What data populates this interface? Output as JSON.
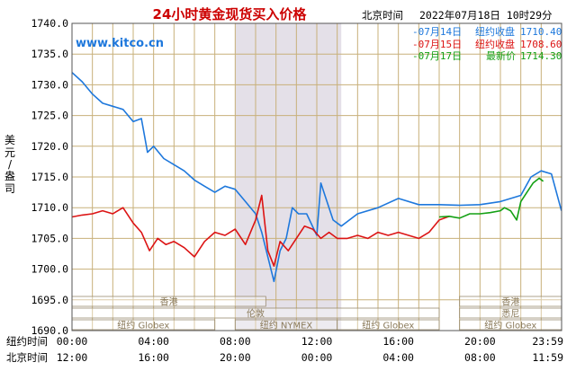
{
  "header": {
    "title": "24小时黄金现货买入价格",
    "tz_label": "北京时间",
    "datetime": "2022年07月18日 10时29分",
    "watermark": "www.kitco.cn"
  },
  "legend": [
    {
      "date": "-07月14日",
      "label": "纽约收盘",
      "value": "1710.40",
      "color": "#1e78dc"
    },
    {
      "date": "-07月15日",
      "label": "纽约收盘",
      "value": "1708.60",
      "color": "#dc1414"
    },
    {
      "date": "-07月17日",
      "label": "最新价",
      "value": "1714.30",
      "color": "#14a014"
    }
  ],
  "y_axis_label": [
    "美",
    "元",
    "/",
    "盎",
    "司"
  ],
  "sessions": [
    {
      "label": "香港",
      "x_start": 0.0,
      "x_end": 9.5,
      "row": 0
    },
    {
      "label": "伦敦",
      "x_start": 0.0,
      "x_end": 18.0,
      "row": 1
    },
    {
      "label": "纽约 Globex",
      "x_start": 0.0,
      "x_end": 7.0,
      "row": 2
    },
    {
      "label": "纽约 NYMEX",
      "x_start": 8.0,
      "x_end": 13.0,
      "row": 2
    },
    {
      "label": "纽约 Globex",
      "x_start": 13.0,
      "x_end": 18.0,
      "row": 2
    },
    {
      "label": "香港",
      "x_start": 19.0,
      "x_end": 24.0,
      "row": 0
    },
    {
      "label": "悉尼",
      "x_start": 19.0,
      "x_end": 24.0,
      "row": 1
    },
    {
      "label": "纽约 Globex",
      "x_start": 19.0,
      "x_end": 24.0,
      "row": 2
    }
  ],
  "bottom_axis": {
    "row1_label": "纽约时间",
    "row2_label": "北京时间",
    "ny_ticks": [
      "00:00",
      "04:00",
      "08:00",
      "12:00",
      "16:00",
      "20:00",
      "23:59"
    ],
    "bj_ticks": [
      "12:00",
      "16:00",
      "20:00",
      "00:00",
      "04:00",
      "08:00",
      "11:59"
    ]
  },
  "chart_data": {
    "type": "line",
    "title": "24小时黄金现货买入价格",
    "xlabel": "纽约时间",
    "ylabel": "美元/盎司",
    "xlim": [
      0,
      24
    ],
    "ylim": [
      1690,
      1740
    ],
    "y_ticks": [
      "1740.0",
      "1735.0",
      "1730.0",
      "1725.0",
      "1720.0",
      "1715.0",
      "1710.0",
      "1705.0",
      "1700.0",
      "1695.0",
      "1690.0"
    ],
    "grid": true,
    "nymex_shade": [
      8.0,
      13.2
    ],
    "series": [
      {
        "name": "07月14日",
        "color": "#1e78dc",
        "x": [
          0,
          0.5,
          1.0,
          1.5,
          2.0,
          2.5,
          3.0,
          3.4,
          3.7,
          4.0,
          4.5,
          5.0,
          5.5,
          6.0,
          6.5,
          7.0,
          7.5,
          8.0,
          8.5,
          9.0,
          9.3,
          9.6,
          9.9,
          10.2,
          10.5,
          10.8,
          11.1,
          11.5,
          12.0,
          12.2,
          12.5,
          12.8,
          13.2,
          14.0,
          15.0,
          16.0,
          17.0,
          18.0,
          19.0,
          20.0,
          21.0,
          22.0,
          22.5,
          23.0,
          23.5,
          23.99
        ],
        "values": [
          1732.0,
          1730.5,
          1728.5,
          1727.0,
          1726.5,
          1726.0,
          1724.0,
          1724.5,
          1719.0,
          1720.0,
          1718.0,
          1717.0,
          1716.0,
          1714.5,
          1713.5,
          1712.5,
          1713.5,
          1713.0,
          1711.0,
          1709.0,
          1706.0,
          1702.0,
          1698.0,
          1703.0,
          1705.0,
          1710.0,
          1709.0,
          1709.0,
          1705.5,
          1714.0,
          1711.0,
          1708.0,
          1707.0,
          1709.0,
          1710.0,
          1711.5,
          1710.5,
          1710.5,
          1710.4,
          1710.5,
          1711.0,
          1712.0,
          1715.0,
          1716.0,
          1715.5,
          1709.5
        ]
      },
      {
        "name": "07月15日",
        "color": "#dc1414",
        "x": [
          0,
          0.5,
          1.0,
          1.5,
          2.0,
          2.5,
          3.0,
          3.4,
          3.8,
          4.2,
          4.6,
          5.0,
          5.5,
          6.0,
          6.5,
          7.0,
          7.5,
          8.0,
          8.5,
          9.0,
          9.3,
          9.6,
          9.9,
          10.2,
          10.6,
          11.0,
          11.4,
          11.8,
          12.2,
          12.6,
          13.0,
          13.5,
          14.0,
          14.5,
          15.0,
          15.5,
          16.0,
          16.5,
          17.0,
          17.5,
          18.0,
          18.5
        ],
        "values": [
          1708.5,
          1708.8,
          1709.0,
          1709.5,
          1709.0,
          1710.0,
          1707.5,
          1706.0,
          1703.0,
          1705.0,
          1704.0,
          1704.5,
          1703.5,
          1702.0,
          1704.5,
          1706.0,
          1705.5,
          1706.5,
          1704.0,
          1708.0,
          1712.0,
          1703.0,
          1700.5,
          1704.5,
          1703.0,
          1705.0,
          1707.0,
          1706.5,
          1705.0,
          1706.0,
          1705.0,
          1705.0,
          1705.5,
          1705.0,
          1706.0,
          1705.5,
          1706.0,
          1705.5,
          1705.0,
          1706.0,
          1708.0,
          1708.6
        ]
      },
      {
        "name": "07月17日",
        "color": "#14a014",
        "x": [
          18.0,
          18.5,
          19.0,
          19.5,
          20.0,
          20.5,
          21.0,
          21.2,
          21.5,
          21.8,
          22.0,
          22.3,
          22.6,
          22.9,
          23.1
        ],
        "values": [
          1708.5,
          1708.6,
          1708.3,
          1709.0,
          1709.0,
          1709.2,
          1709.5,
          1710.0,
          1709.5,
          1708.0,
          1711.0,
          1712.5,
          1714.0,
          1714.8,
          1714.3
        ]
      }
    ]
  }
}
